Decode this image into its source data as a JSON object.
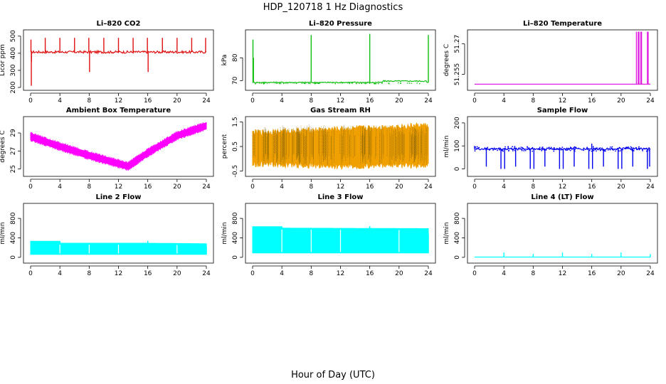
{
  "figure": {
    "title": "HDP_120718  1 Hz Diagnostics",
    "xlabel": "Hour of Day (UTC)"
  },
  "chart_data": [
    {
      "type": "line",
      "title": "Li–820 CO2",
      "ylabel": "Licor ppm",
      "color": "#e01010",
      "xlim": [
        0,
        24
      ],
      "ylim": [
        200,
        520
      ],
      "yticks": [
        200,
        300,
        400,
        500
      ],
      "xticks": [
        0,
        4,
        8,
        12,
        16,
        20,
        24
      ],
      "baseline": 407,
      "noise": 7,
      "drift": [],
      "spikes": [
        {
          "x": 0.05,
          "y": 480
        },
        {
          "x": 0.1,
          "y": 210
        },
        {
          "x": 0.12,
          "y": 350
        },
        {
          "x": 2.0,
          "y": 490
        },
        {
          "x": 4.0,
          "y": 490
        },
        {
          "x": 6.0,
          "y": 490
        },
        {
          "x": 7.95,
          "y": 490
        },
        {
          "x": 8.05,
          "y": 290
        },
        {
          "x": 10.0,
          "y": 490
        },
        {
          "x": 12.0,
          "y": 490
        },
        {
          "x": 14.0,
          "y": 490
        },
        {
          "x": 15.95,
          "y": 490
        },
        {
          "x": 16.05,
          "y": 290
        },
        {
          "x": 18.0,
          "y": 490
        },
        {
          "x": 20.0,
          "y": 490
        },
        {
          "x": 22.0,
          "y": 490
        },
        {
          "x": 23.9,
          "y": 490
        }
      ]
    },
    {
      "type": "line",
      "title": "Li–820 Pressure",
      "ylabel": "kPa",
      "color": "#10c010",
      "xlim": [
        0,
        24
      ],
      "ylim": [
        67,
        91
      ],
      "yticks": [
        70,
        80
      ],
      "xticks": [
        0,
        4,
        8,
        12,
        16,
        20,
        24
      ],
      "baseline": 69.2,
      "noise": 0.25,
      "drift": [
        {
          "from": 17.8,
          "to": 23.7,
          "value": 69.8
        }
      ],
      "spikes": [
        {
          "x": 0.05,
          "y": 88
        },
        {
          "x": 0.12,
          "y": 80
        },
        {
          "x": 8.0,
          "y": 90
        },
        {
          "x": 16.0,
          "y": 90.5
        },
        {
          "x": 24.0,
          "y": 90
        }
      ]
    },
    {
      "type": "line",
      "title": "Li–820 Temperature",
      "ylabel": "degrees C",
      "color": "#e020e0",
      "xlim": [
        0,
        24
      ],
      "ylim": [
        51.2485,
        51.2755
      ],
      "yticks": [
        51.255,
        51.27
      ],
      "xticks": [
        0,
        4,
        8,
        12,
        16,
        20,
        24
      ],
      "baseline": 51.2501,
      "noise": 0,
      "drift": [],
      "spikes": [
        {
          "x": 22.1,
          "y": 51.276
        },
        {
          "x": 22.35,
          "y": 51.276
        },
        {
          "x": 22.45,
          "y": 51.276
        },
        {
          "x": 22.7,
          "y": 51.276
        },
        {
          "x": 22.8,
          "y": 51.276
        },
        {
          "x": 23.6,
          "y": 51.276
        },
        {
          "x": 23.7,
          "y": 51.276
        }
      ]
    },
    {
      "type": "area",
      "title": "Ambient Box Temperature",
      "ylabel": "degrees C",
      "color": "#ff00ff",
      "xlim": [
        0,
        24
      ],
      "ylim": [
        24.5,
        30.5
      ],
      "yticks": [
        25,
        27,
        29
      ],
      "xticks": [
        0,
        4,
        8,
        12,
        16,
        20,
        24
      ],
      "center": [
        [
          0,
          28.6
        ],
        [
          4,
          27.5
        ],
        [
          8,
          26.5
        ],
        [
          12,
          25.6
        ],
        [
          13.3,
          25.3
        ],
        [
          16,
          26.8
        ],
        [
          20,
          28.7
        ],
        [
          24,
          29.8
        ]
      ],
      "halfwidth": 0.35
    },
    {
      "type": "area",
      "title": "Gas Stream RH",
      "ylabel": "percent",
      "color": "#f0a000",
      "xlim": [
        0,
        24
      ],
      "ylim": [
        -0.6,
        1.6
      ],
      "yticks": [
        -0.5,
        0.5,
        1.5
      ],
      "xticks": [
        0,
        4,
        8,
        12,
        16,
        20,
        24
      ],
      "center": [
        [
          0,
          0.45
        ],
        [
          12,
          0.5
        ],
        [
          24,
          0.55
        ]
      ],
      "lower": [
        [
          0,
          -0.2
        ],
        [
          12,
          -0.3
        ],
        [
          24,
          -0.25
        ]
      ],
      "upper": [
        [
          0,
          1.05
        ],
        [
          12,
          1.2
        ],
        [
          24,
          1.35
        ]
      ],
      "halfwidth": 0.55
    },
    {
      "type": "line",
      "title": "Sample Flow",
      "ylabel": "ml/min",
      "color": "#0000ee",
      "xlim": [
        0,
        24
      ],
      "ylim": [
        -20,
        215
      ],
      "yticks": [
        0,
        100,
        200
      ],
      "xticks": [
        0,
        4,
        8,
        12,
        16,
        20,
        24
      ],
      "baseline": 87,
      "noise": 5,
      "drift": [],
      "spikes": [
        {
          "x": 0.0,
          "y": 100
        },
        {
          "x": 1.6,
          "y": 10
        },
        {
          "x": 3.6,
          "y": 0
        },
        {
          "x": 4.1,
          "y": 0
        },
        {
          "x": 5.6,
          "y": 10
        },
        {
          "x": 7.6,
          "y": 0
        },
        {
          "x": 8.1,
          "y": 0
        },
        {
          "x": 9.6,
          "y": 10
        },
        {
          "x": 11.6,
          "y": 0
        },
        {
          "x": 12.1,
          "y": 0
        },
        {
          "x": 13.6,
          "y": 10
        },
        {
          "x": 15.6,
          "y": 0
        },
        {
          "x": 16.0,
          "y": 110
        },
        {
          "x": 16.1,
          "y": 0
        },
        {
          "x": 17.6,
          "y": 10
        },
        {
          "x": 19.6,
          "y": 0
        },
        {
          "x": 20.1,
          "y": 0
        },
        {
          "x": 21.6,
          "y": 10
        },
        {
          "x": 23.6,
          "y": 0
        },
        {
          "x": 23.9,
          "y": 10
        }
      ]
    },
    {
      "type": "area",
      "title": "Line 2 Flow",
      "ylabel": "ml/min",
      "color": "#00ffff",
      "xlim": [
        0,
        24
      ],
      "ylim": [
        -60,
        1050
      ],
      "yticks": [
        0,
        400,
        800
      ],
      "xticks": [
        0,
        4,
        8,
        12,
        16,
        20,
        24
      ],
      "lower": [
        [
          0,
          60
        ],
        [
          24,
          60
        ]
      ],
      "upper": [
        [
          0,
          330
        ],
        [
          4,
          330
        ],
        [
          4.01,
          290
        ],
        [
          16,
          290
        ],
        [
          24,
          280
        ]
      ],
      "gaps": [
        4,
        8,
        12,
        16,
        20
      ],
      "spikes": [
        {
          "x": 16.0,
          "y": 340
        },
        {
          "x": 24.0,
          "y": 230
        }
      ]
    },
    {
      "type": "area",
      "title": "Line 3 Flow",
      "ylabel": "ml/min",
      "color": "#00ffff",
      "xlim": [
        0,
        24
      ],
      "ylim": [
        -60,
        1050
      ],
      "yticks": [
        0,
        400,
        800
      ],
      "xticks": [
        0,
        4,
        8,
        12,
        16,
        20,
        24
      ],
      "lower": [
        [
          0,
          90
        ],
        [
          24,
          90
        ]
      ],
      "upper": [
        [
          0,
          630
        ],
        [
          4,
          630
        ],
        [
          4.01,
          600
        ],
        [
          24,
          590
        ]
      ],
      "gaps": [
        4,
        8,
        12,
        16,
        20
      ],
      "spikes": [
        {
          "x": 16.0,
          "y": 640
        },
        {
          "x": 24.0,
          "y": 480
        }
      ]
    },
    {
      "type": "line",
      "title": "Line 4 (LT) Flow",
      "ylabel": "ml/min",
      "color": "#00ffff",
      "xlim": [
        0,
        24
      ],
      "ylim": [
        -60,
        1050
      ],
      "yticks": [
        0,
        400,
        800
      ],
      "xticks": [
        0,
        4,
        8,
        12,
        16,
        20,
        24
      ],
      "baseline": 5,
      "noise": 0,
      "drift": [],
      "spikes": [
        {
          "x": 4.0,
          "y": 100
        },
        {
          "x": 8.0,
          "y": 70
        },
        {
          "x": 12.0,
          "y": 100
        },
        {
          "x": 16.0,
          "y": 70
        },
        {
          "x": 20.0,
          "y": 100
        },
        {
          "x": 24.0,
          "y": 70
        }
      ]
    }
  ]
}
